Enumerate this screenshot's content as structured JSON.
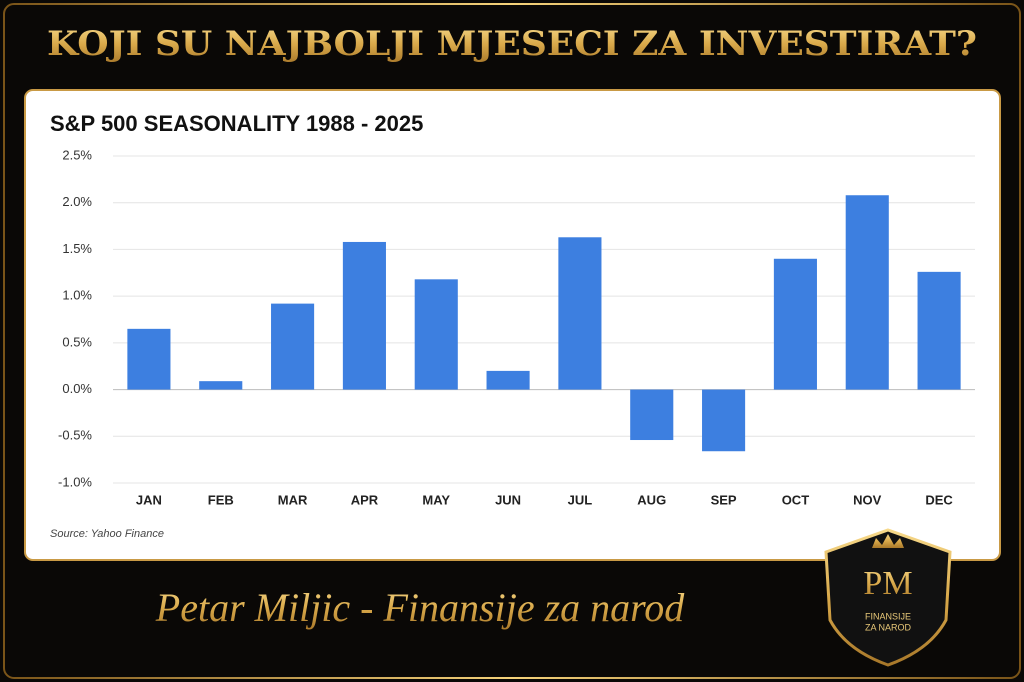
{
  "headline": "KOJI SU NAJBOLJI MJESECI ZA INVESTIRAT?",
  "signature": "Petar Miljic - Finansije za narod",
  "logo": {
    "monogram": "PM",
    "text": [
      "FINANSIJE",
      "ZA NAROD"
    ]
  },
  "chart_data": {
    "type": "bar",
    "title": "S&P 500 SEASONALITY 1988 - 2025",
    "categories": [
      "JAN",
      "FEB",
      "MAR",
      "APR",
      "MAY",
      "JUN",
      "JUL",
      "AUG",
      "SEP",
      "OCT",
      "NOV",
      "DEC"
    ],
    "values": [
      0.65,
      0.09,
      0.92,
      1.58,
      1.18,
      0.2,
      1.63,
      -0.54,
      -0.66,
      1.4,
      2.08,
      1.26
    ],
    "color": "#3d7fe0",
    "ylim": [
      -1.0,
      2.5
    ],
    "yticks": [
      {
        "value": 2.5,
        "label": "2.5%"
      },
      {
        "value": 2.0,
        "label": "2.0%"
      },
      {
        "value": 1.5,
        "label": "1.5%"
      },
      {
        "value": 1.0,
        "label": "1.0%"
      },
      {
        "value": 0.5,
        "label": "0.5%"
      },
      {
        "value": 0.0,
        "label": "0.0%"
      },
      {
        "value": -0.5,
        "label": "-0.5%"
      },
      {
        "value": -1.0,
        "label": "-1.0%"
      }
    ],
    "grid": true,
    "source": "Source: Yahoo Finance"
  }
}
